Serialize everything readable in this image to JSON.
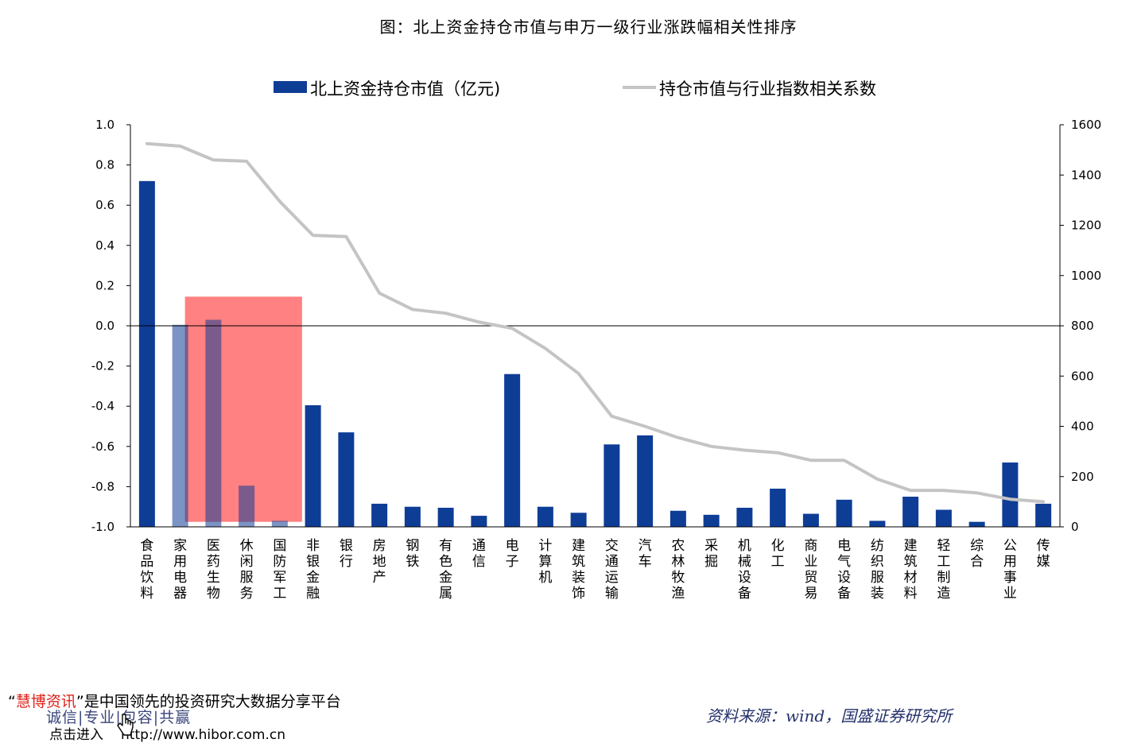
{
  "title": "图：北上资金持仓市值与申万一级行业涨跌幅相关性排序",
  "legend": {
    "bar_label": "北上资金持仓市值（亿元)",
    "line_label": "持仓市值与行业指数相关系数"
  },
  "footer": {
    "quote_open": "“",
    "brand": "慧博资讯",
    "quote_close_text": "”是中国领先的投资研究大数据分享平台",
    "slogan": "诚信|专业|包容|共赢",
    "enter_text": "点击进入",
    "url": "http://www.hibor.com.cn"
  },
  "source": "资料来源：wind，国盛证券研究所",
  "colors": {
    "bar": "#0e3d96",
    "line": "#c4c4c4",
    "highlight": "#ff6b6b"
  },
  "chart_data": {
    "type": "bar",
    "categories": [
      "食品饮料",
      "家用电器",
      "医药生物",
      "休闲服务",
      "国防军工",
      "非银金融",
      "银行",
      "房地产",
      "钢铁",
      "有色金属",
      "通信",
      "电子",
      "计算机",
      "建筑装饰",
      "交通运输",
      "汽车",
      "农林牧渔",
      "采掘",
      "机械设备",
      "化工",
      "商业贸易",
      "电气设备",
      "纺织服装",
      "建筑材料",
      "轻工制造",
      "综合",
      "公用事业",
      "传媒"
    ],
    "series": [
      {
        "name": "北上资金持仓市值（亿元)",
        "type": "bar",
        "axis": "left",
        "values": [
          0.72,
          0.005,
          0.03,
          -0.795,
          -0.97,
          -0.395,
          -0.53,
          -0.885,
          -0.9,
          -0.905,
          -0.945,
          -0.24,
          -0.9,
          -0.93,
          -0.59,
          -0.545,
          -0.92,
          -0.94,
          -0.905,
          -0.81,
          -0.935,
          -0.865,
          -0.97,
          -0.85,
          -0.915,
          -0.975,
          -0.68,
          -0.885
        ]
      },
      {
        "name": "持仓市值与行业指数相关系数",
        "type": "line",
        "axis": "right",
        "values": [
          1525,
          1515,
          1460,
          1455,
          1295,
          1160,
          1155,
          930,
          865,
          850,
          815,
          790,
          710,
          610,
          440,
          400,
          355,
          320,
          305,
          295,
          265,
          265,
          190,
          145,
          145,
          135,
          110,
          100
        ]
      }
    ],
    "y_left": {
      "range": [
        -1.0,
        1.0
      ],
      "ticks": [
        "1.0",
        "0.8",
        "0.6",
        "0.4",
        "0.2",
        "0.0",
        "-0.2",
        "-0.4",
        "-0.6",
        "-0.8",
        "-1.0"
      ]
    },
    "y_right": {
      "range": [
        0,
        1600
      ],
      "ticks": [
        "1600",
        "1400",
        "1200",
        "1000",
        "800",
        "600",
        "400",
        "200",
        "0"
      ]
    },
    "highlight": {
      "from_category": "家用电器",
      "to_category": "国防军工",
      "y_top": 0.145,
      "y_bottom": -0.975
    },
    "grid": false
  }
}
